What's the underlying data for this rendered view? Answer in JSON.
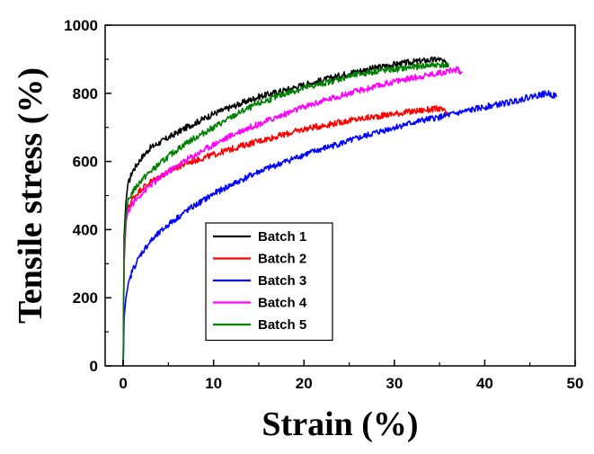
{
  "chart_data": {
    "type": "line",
    "xlabel": "Strain (%)",
    "ylabel": "Tensile stress (%)",
    "xlim": [
      -2,
      50
    ],
    "ylim": [
      0,
      1000
    ],
    "xticks": [
      0,
      10,
      20,
      30,
      40,
      50
    ],
    "yticks": [
      0,
      200,
      400,
      600,
      800,
      1000
    ],
    "legend_position": "lower-center",
    "grid": false,
    "series": [
      {
        "name": "Batch 1",
        "color": "#000000",
        "x": [
          0,
          0.05,
          0.1,
          0.3,
          0.5,
          1,
          2,
          3,
          5,
          7,
          10,
          13,
          15,
          18,
          20,
          23,
          25,
          28,
          30,
          33,
          35,
          36
        ],
        "y": [
          0,
          200,
          380,
          480,
          530,
          570,
          610,
          640,
          670,
          700,
          740,
          770,
          790,
          810,
          825,
          845,
          860,
          875,
          885,
          895,
          900,
          880
        ]
      },
      {
        "name": "Batch 2",
        "color": "#ff0000",
        "x": [
          0,
          0.05,
          0.1,
          0.3,
          0.5,
          1,
          2,
          3,
          5,
          7,
          10,
          13,
          15,
          18,
          20,
          23,
          25,
          28,
          30,
          33,
          35,
          36
        ],
        "y": [
          0,
          160,
          300,
          420,
          460,
          490,
          520,
          540,
          570,
          595,
          620,
          645,
          660,
          680,
          695,
          710,
          720,
          732,
          740,
          750,
          755,
          740
        ]
      },
      {
        "name": "Batch 3",
        "color": "#0000ff",
        "x": [
          0,
          0.1,
          0.3,
          0.5,
          1,
          2,
          3,
          5,
          7,
          10,
          13,
          15,
          18,
          20,
          23,
          25,
          28,
          30,
          33,
          35,
          38,
          40,
          43,
          45,
          47,
          48
        ],
        "y": [
          0,
          140,
          200,
          230,
          280,
          330,
          365,
          415,
          455,
          505,
          545,
          570,
          600,
          620,
          645,
          660,
          685,
          700,
          720,
          730,
          748,
          760,
          775,
          790,
          800,
          790
        ]
      },
      {
        "name": "Batch 4",
        "color": "#ff00ff",
        "x": [
          0,
          0.05,
          0.1,
          0.3,
          0.5,
          1,
          2,
          3,
          5,
          7,
          10,
          13,
          15,
          18,
          20,
          23,
          25,
          28,
          30,
          33,
          35,
          37,
          37.5
        ],
        "y": [
          0,
          170,
          320,
          420,
          450,
          475,
          505,
          530,
          570,
          605,
          650,
          690,
          710,
          740,
          760,
          785,
          800,
          820,
          835,
          850,
          860,
          870,
          860
        ]
      },
      {
        "name": "Batch 5",
        "color": "#008000",
        "x": [
          0,
          0.05,
          0.1,
          0.3,
          0.5,
          1,
          2,
          3,
          5,
          7,
          10,
          13,
          15,
          18,
          20,
          23,
          25,
          28,
          30,
          33,
          35,
          36
        ],
        "y": [
          0,
          190,
          350,
          440,
          480,
          510,
          545,
          570,
          615,
          655,
          700,
          745,
          770,
          800,
          815,
          835,
          850,
          865,
          870,
          880,
          885,
          880
        ]
      }
    ]
  }
}
